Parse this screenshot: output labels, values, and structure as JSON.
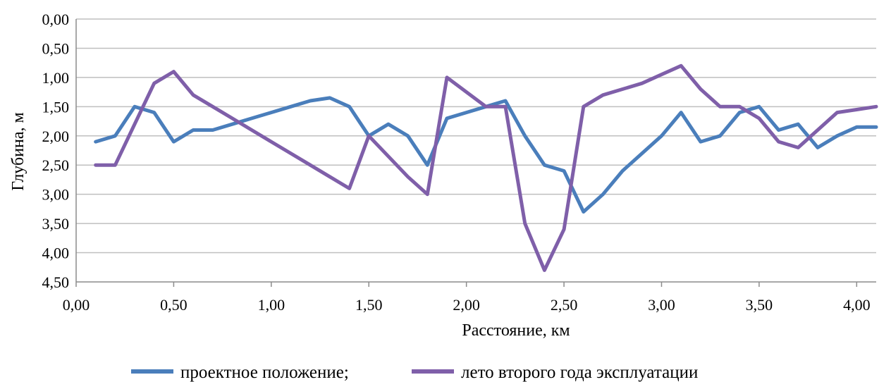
{
  "chart_data": {
    "type": "line",
    "title": "",
    "xlabel": "Расстояние, км",
    "ylabel": "Глубина, м",
    "xlim": [
      0,
      4.1
    ],
    "ylim": [
      0,
      4.5
    ],
    "y_inverted": true,
    "x_ticks": [
      0,
      0.5,
      1.0,
      1.5,
      2.0,
      2.5,
      3.0,
      3.5,
      4.0
    ],
    "x_tick_labels": [
      "0,00",
      "0,50",
      "1,00",
      "1,50",
      "2,00",
      "2,50",
      "3,00",
      "3,50",
      "4,00"
    ],
    "y_ticks": [
      0,
      0.5,
      1.0,
      1.5,
      2.0,
      2.5,
      3.0,
      3.5,
      4.0,
      4.5
    ],
    "y_tick_labels": [
      "0,00",
      "0,50",
      "1,00",
      "1,50",
      "2,00",
      "2,50",
      "3,00",
      "3,50",
      "4,00",
      "4,50"
    ],
    "grid": true,
    "legend_position": "bottom",
    "x": [
      0.1,
      0.2,
      0.3,
      0.4,
      0.5,
      0.6,
      0.7,
      0.8,
      0.9,
      1.0,
      1.1,
      1.2,
      1.3,
      1.4,
      1.5,
      1.6,
      1.7,
      1.8,
      1.9,
      2.0,
      2.1,
      2.2,
      2.3,
      2.4,
      2.5,
      2.6,
      2.7,
      2.8,
      2.9,
      3.0,
      3.1,
      3.2,
      3.3,
      3.4,
      3.5,
      3.6,
      3.7,
      3.8,
      3.9,
      4.0,
      4.1
    ],
    "series": [
      {
        "name": "проектное положение;",
        "color": "#4a7ebb",
        "values": [
          2.1,
          2.0,
          1.5,
          1.6,
          2.1,
          1.9,
          1.9,
          1.8,
          1.7,
          1.6,
          1.5,
          1.4,
          1.35,
          1.5,
          2.0,
          1.8,
          2.0,
          2.5,
          1.7,
          1.6,
          1.5,
          1.4,
          2.0,
          2.5,
          2.6,
          3.3,
          3.0,
          2.6,
          2.3,
          2.0,
          1.6,
          2.1,
          2.0,
          1.6,
          1.5,
          1.9,
          1.8,
          2.2,
          2.0,
          1.85,
          1.85
        ]
      },
      {
        "name": "лето второго года эксплуатации",
        "color": "#7f5fa9",
        "values": [
          2.5,
          2.5,
          1.8,
          1.1,
          0.9,
          1.3,
          1.5,
          1.7,
          1.9,
          2.1,
          2.3,
          2.5,
          2.7,
          2.9,
          2.0,
          2.35,
          2.7,
          3.0,
          1.0,
          1.25,
          1.5,
          1.5,
          3.5,
          4.3,
          3.6,
          1.5,
          1.3,
          1.2,
          1.1,
          0.95,
          0.8,
          1.2,
          1.5,
          1.5,
          1.7,
          2.1,
          2.2,
          1.9,
          1.6,
          1.55,
          1.5
        ]
      }
    ]
  }
}
